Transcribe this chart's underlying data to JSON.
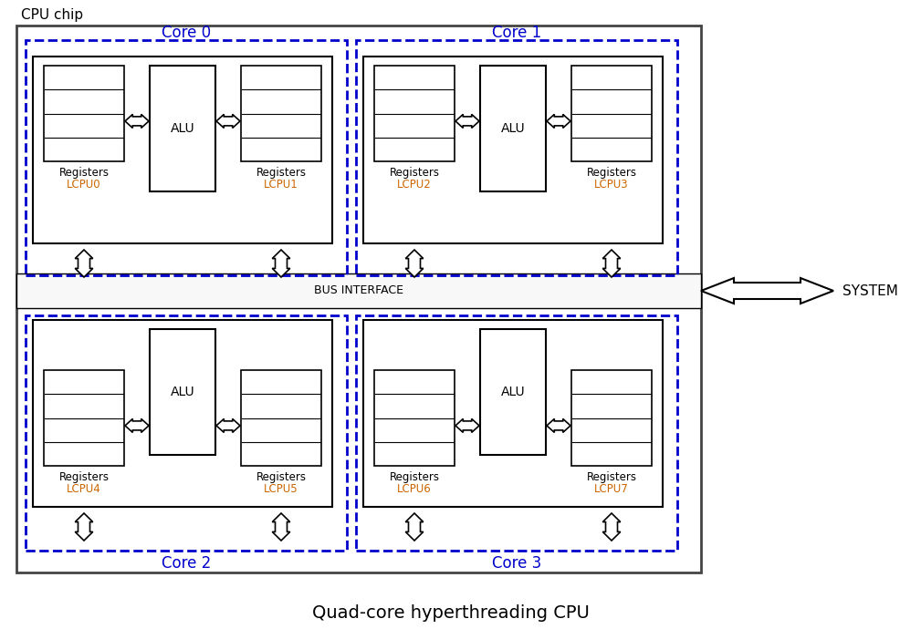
{
  "title_top": "CPU chip",
  "title_bottom": "Quad-core hyperthreading CPU",
  "core_labels": [
    "Core 0",
    "Core 1",
    "Core 2",
    "Core 3"
  ],
  "lcpu_labels": [
    "LCPU0",
    "LCPU1",
    "LCPU2",
    "LCPU3",
    "LCPU4",
    "LCPU5",
    "LCPU6",
    "LCPU7"
  ],
  "alu_label": "ALU",
  "bus_label": "BUS INTERFACE",
  "sysbus_label": "SYSTEM BUS",
  "core_color": "#0000cc",
  "chip_color": "#444444",
  "label_color": "#cc6600",
  "bg_color": "#ffffff",
  "fig_width": 9.87,
  "fig_height": 6.9
}
